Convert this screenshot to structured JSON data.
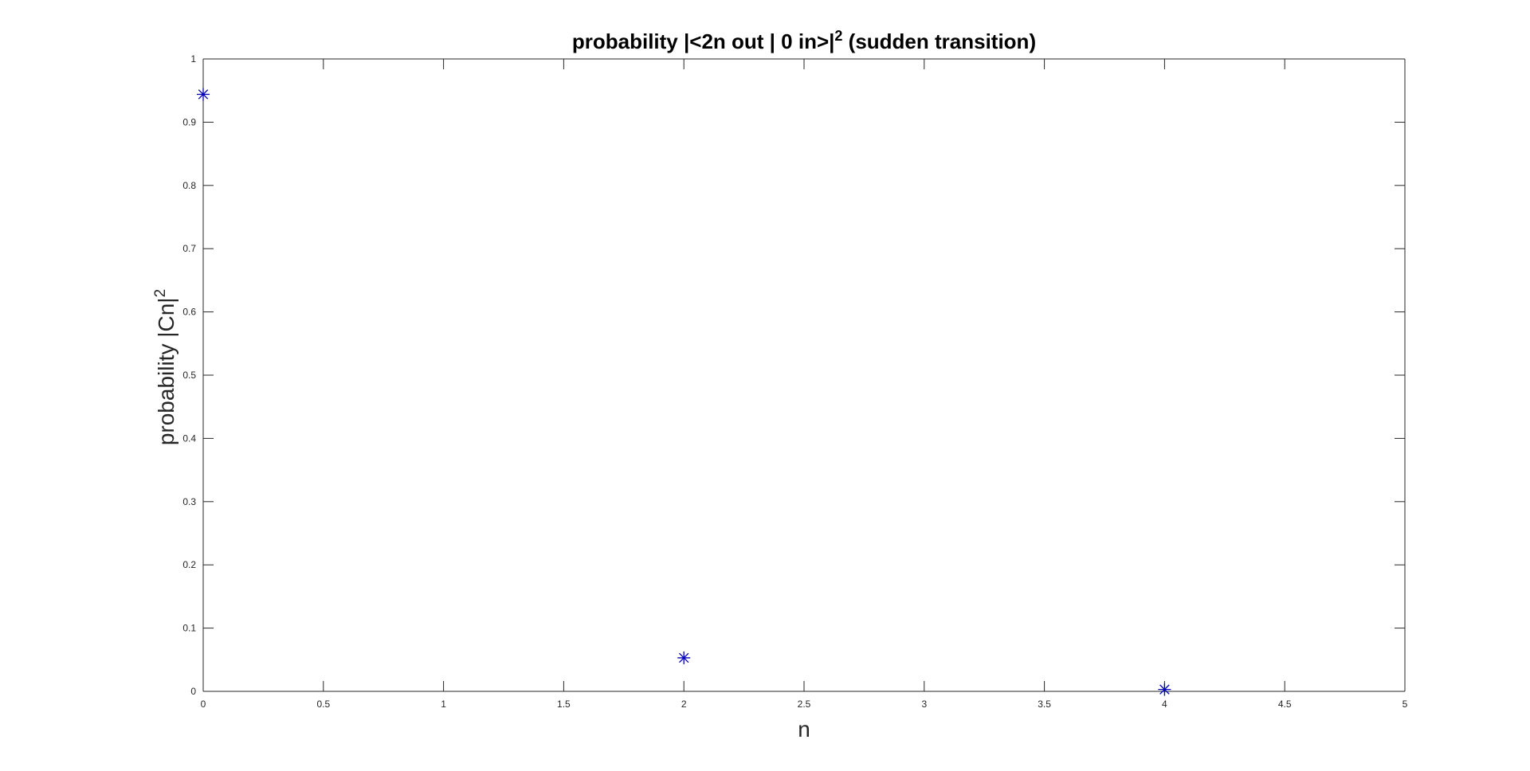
{
  "chart_data": {
    "type": "scatter",
    "title": {
      "prefix": "probability |<2n out | 0 in>|",
      "superscript": "2",
      "suffix": " (sudden transition)"
    },
    "xlabel": "n",
    "ylabel": {
      "main": "probability |Cn|",
      "superscript": "2"
    },
    "xlim": [
      0,
      5
    ],
    "ylim": [
      0,
      1
    ],
    "xticks": [
      "0",
      "0.5",
      "1",
      "1.5",
      "2",
      "2.5",
      "3",
      "3.5",
      "4",
      "4.5",
      "5"
    ],
    "yticks": [
      "0",
      "0.1",
      "0.2",
      "0.3",
      "0.4",
      "0.5",
      "0.6",
      "0.7",
      "0.8",
      "0.9",
      "1"
    ],
    "grid": false,
    "marker": "asterisk",
    "marker_color": "#0000b8",
    "series": [
      {
        "x": [
          0,
          2,
          4
        ],
        "y": [
          0.944,
          0.053,
          0.003
        ]
      }
    ]
  }
}
